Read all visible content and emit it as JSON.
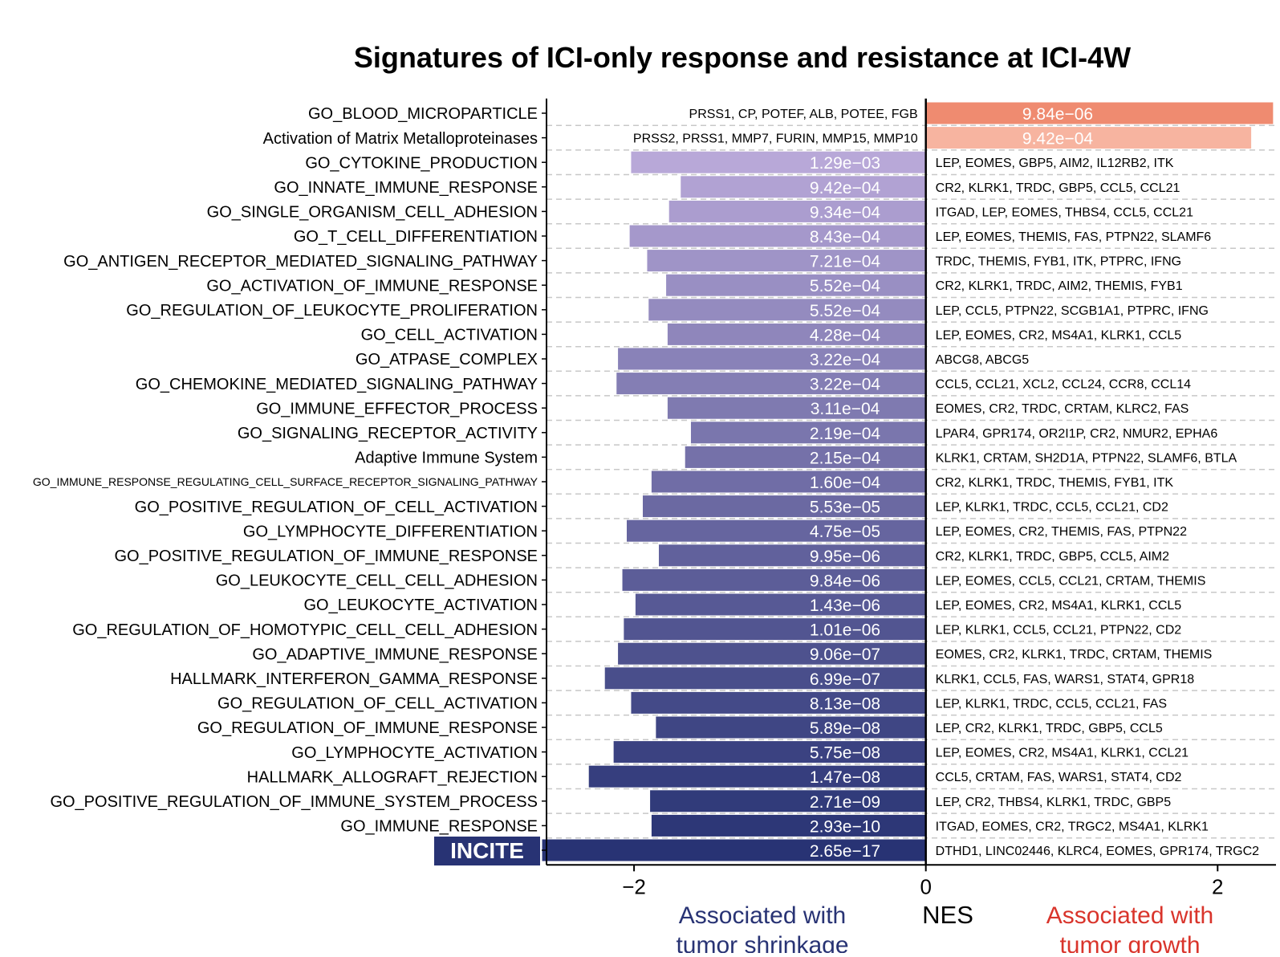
{
  "chart_data": {
    "type": "bar",
    "title": "Signatures of ICI-only response and resistance at ICI-4W",
    "xlabel": "NES",
    "xlim": [
      -2.6,
      2.4
    ],
    "xticks": [
      -2,
      0,
      2
    ],
    "xtick_labels": [
      "−2",
      "0",
      "2"
    ],
    "grid": "horizontal dashed",
    "negative_label": "Associated with tumor shrinkage",
    "positive_label": "Associated with tumor growth",
    "colors": {
      "negative_light": "#b8a8d8",
      "negative_dark": "#283374",
      "positive_strong": "#ef8b70",
      "positive_light": "#f7b4a0",
      "negative_label": "#283374",
      "positive_label": "#d9342b",
      "highlight_bg": "#283374"
    },
    "highlight_category": "INCITE",
    "categories": [
      "GO_BLOOD_MICROPARTICLE",
      "Activation of Matrix Metalloproteinases",
      "GO_CYTOKINE_PRODUCTION",
      "GO_INNATE_IMMUNE_RESPONSE",
      "GO_SINGLE_ORGANISM_CELL_ADHESION",
      "GO_T_CELL_DIFFERENTIATION",
      "GO_ANTIGEN_RECEPTOR_MEDIATED_SIGNALING_PATHWAY",
      "GO_ACTIVATION_OF_IMMUNE_RESPONSE",
      "GO_REGULATION_OF_LEUKOCYTE_PROLIFERATION",
      "GO_CELL_ACTIVATION",
      "GO_ATPASE_COMPLEX",
      "GO_CHEMOKINE_MEDIATED_SIGNALING_PATHWAY",
      "GO_IMMUNE_EFFECTOR_PROCESS",
      "GO_SIGNALING_RECEPTOR_ACTIVITY",
      "Adaptive Immune System",
      "GO_IMMUNE_RESPONSE_REGULATING_CELL_SURFACE_RECEPTOR_SIGNALING_PATHWAY",
      "GO_POSITIVE_REGULATION_OF_CELL_ACTIVATION",
      "GO_LYMPHOCYTE_DIFFERENTIATION",
      "GO_POSITIVE_REGULATION_OF_IMMUNE_RESPONSE",
      "GO_LEUKOCYTE_CELL_CELL_ADHESION",
      "GO_LEUKOCYTE_ACTIVATION",
      "GO_REGULATION_OF_HOMOTYPIC_CELL_CELL_ADHESION",
      "GO_ADAPTIVE_IMMUNE_RESPONSE",
      "HALLMARK_INTERFERON_GAMMA_RESPONSE",
      "GO_REGULATION_OF_CELL_ACTIVATION",
      "GO_REGULATION_OF_IMMUNE_RESPONSE",
      "GO_LYMPHOCYTE_ACTIVATION",
      "HALLMARK_ALLOGRAFT_REJECTION",
      "GO_POSITIVE_REGULATION_OF_IMMUNE_SYSTEM_PROCESS",
      "GO_IMMUNE_RESPONSE",
      "INCITE"
    ],
    "values": [
      2.38,
      2.23,
      -2.02,
      -1.68,
      -1.76,
      -2.03,
      -1.91,
      -1.78,
      -1.9,
      -1.77,
      -2.11,
      -2.12,
      -1.77,
      -1.61,
      -1.65,
      -1.88,
      -1.94,
      -2.05,
      -1.83,
      -2.08,
      -1.99,
      -2.07,
      -2.11,
      -2.2,
      -2.02,
      -1.85,
      -2.14,
      -2.31,
      -1.89,
      -1.88,
      -2.63
    ],
    "pvalue_labels": [
      "9.84e−06",
      "9.42e−04",
      "1.29e−03",
      "9.42e−04",
      "9.34e−04",
      "8.43e−04",
      "7.21e−04",
      "5.52e−04",
      "5.52e−04",
      "4.28e−04",
      "3.22e−04",
      "3.22e−04",
      "3.11e−04",
      "2.19e−04",
      "2.15e−04",
      "1.60e−04",
      "5.53e−05",
      "4.75e−05",
      "9.95e−06",
      "9.84e−06",
      "1.43e−06",
      "1.01e−06",
      "9.06e−07",
      "6.99e−07",
      "8.13e−08",
      "5.89e−08",
      "5.75e−08",
      "1.47e−08",
      "2.71e−09",
      "2.93e−10",
      "2.65e−17"
    ],
    "gene_labels": [
      "PRSS1, CP, POTEF, ALB, POTEE, FGB",
      "PRSS2, PRSS1, MMP7, FURIN, MMP15, MMP10",
      "LEP, EOMES, GBP5, AIM2, IL12RB2, ITK",
      "CR2, KLRK1, TRDC, GBP5, CCL5, CCL21",
      "ITGAD, LEP, EOMES, THBS4, CCL5, CCL21",
      "LEP, EOMES, THEMIS, FAS, PTPN22, SLAMF6",
      "TRDC, THEMIS, FYB1, ITK, PTPRC, IFNG",
      "CR2, KLRK1, TRDC, AIM2, THEMIS, FYB1",
      "LEP, CCL5, PTPN22, SCGB1A1, PTPRC, IFNG",
      "LEP, EOMES, CR2, MS4A1, KLRK1, CCL5",
      "ABCG8, ABCG5",
      "CCL5, CCL21, XCL2, CCL24, CCR8, CCL14",
      "EOMES, CR2, TRDC, CRTAM, KLRC2, FAS",
      "LPAR4, GPR174, OR2I1P, CR2, NMUR2, EPHA6",
      "KLRK1, CRTAM, SH2D1A, PTPN22, SLAMF6, BTLA",
      "CR2, KLRK1, TRDC, THEMIS, FYB1, ITK",
      "LEP, KLRK1, TRDC, CCL5, CCL21, CD2",
      "LEP, EOMES, CR2, THEMIS, FAS, PTPN22",
      "CR2, KLRK1, TRDC, GBP5, CCL5, AIM2",
      "LEP, EOMES, CCL5, CCL21, CRTAM, THEMIS",
      "LEP, EOMES, CR2, MS4A1, KLRK1, CCL5",
      "LEP, KLRK1, CCL5, CCL21, PTPN22, CD2",
      "EOMES, CR2, KLRK1, TRDC, CRTAM, THEMIS",
      "KLRK1, CCL5, FAS, WARS1, STAT4, GPR18",
      "LEP, KLRK1, TRDC, CCL5, CCL21, FAS",
      "LEP, CR2, KLRK1, TRDC, GBP5, CCL5",
      "LEP, EOMES, CR2, MS4A1, KLRK1, CCL21",
      "CCL5, CRTAM, FAS, WARS1, STAT4, CD2",
      "LEP, CR2, THBS4, KLRK1, TRDC, GBP5",
      "ITGAD, EOMES, CR2, TRGC2, MS4A1, KLRK1",
      "DTHD1, LINC02446, KLRC4, EOMES, GPR174, TRGC2"
    ]
  }
}
